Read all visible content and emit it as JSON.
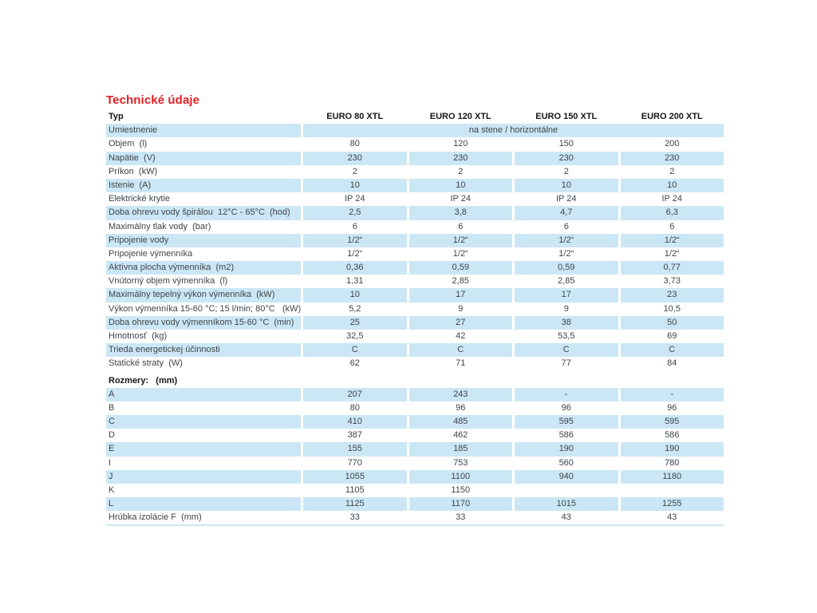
{
  "title": "Technické údaje",
  "colors": {
    "accent_red": "#e31e24",
    "row_blue": "#cbe7f5",
    "text": "#3f4449"
  },
  "table": {
    "header": {
      "label": "Typ",
      "columns": [
        "EURO 80 XTL",
        "EURO 120 XTL",
        "EURO 150 XTL",
        "EURO 200 XTL"
      ]
    },
    "rows": [
      {
        "label": "Umiestnenie",
        "merged": "na stene / horizontálne"
      },
      {
        "label": "Objem  (l)",
        "values": [
          "80",
          "120",
          "150",
          "200"
        ]
      },
      {
        "label": "Napätie  (V)",
        "values": [
          "230",
          "230",
          "230",
          "230"
        ]
      },
      {
        "label": "Príkon  (kW)",
        "values": [
          "2",
          "2",
          "2",
          "2"
        ]
      },
      {
        "label": "Istenie  (A)",
        "values": [
          "10",
          "10",
          "10",
          "10"
        ]
      },
      {
        "label": "Elektrické krytie",
        "values": [
          "IP 24",
          "IP 24",
          "IP 24",
          "IP 24"
        ]
      },
      {
        "label": "Doba ohrevu vody špirálou  12°C - 65°C  (hod)",
        "values": [
          "2,5",
          "3,8",
          "4,7",
          "6,3"
        ]
      },
      {
        "label": "Maximálny tlak vody  (bar)",
        "values": [
          "6",
          "6",
          "6",
          "6"
        ]
      },
      {
        "label": "Pripojenie vody",
        "values": [
          "1/2“",
          "1/2“",
          "1/2“",
          "1/2“"
        ]
      },
      {
        "label": "Pripojenie výmenníka",
        "values": [
          "1/2“",
          "1/2“",
          "1/2“",
          "1/2“"
        ]
      },
      {
        "label": "Aktívna plocha výmenníka  (m2)",
        "values": [
          "0,36",
          "0,59",
          "0,59",
          "0,77"
        ]
      },
      {
        "label": "Vnútorný objem výmenníka  (l)",
        "values": [
          "1,31",
          "2,85",
          "2,85",
          "3,73"
        ]
      },
      {
        "label": "Maximálny tepelný výkon výmenníka  (kW)",
        "values": [
          "10",
          "17",
          "17",
          "23"
        ]
      },
      {
        "label": "Výkon výmenníka 15-60 °C; 15 l/min; 80°C   (kW)",
        "values": [
          "5,2",
          "9",
          "9",
          "10,5"
        ]
      },
      {
        "label": "Doba ohrevu vody výmenníkom 15-60 °C  (min)",
        "values": [
          "25",
          "27",
          "38",
          "50"
        ]
      },
      {
        "label": "Hmotnosť  (kg)",
        "values": [
          "32,5",
          "42",
          "53,5",
          "69"
        ]
      },
      {
        "label": "Trieda energetickej účinnosti",
        "values": [
          "C",
          "C",
          "C",
          "C"
        ]
      },
      {
        "label": "Statické straty  (W)",
        "values": [
          "62",
          "71",
          "77",
          "84"
        ]
      },
      {
        "section": "Rozmery:   (mm)"
      },
      {
        "label": "A",
        "values": [
          "207",
          "243",
          "-",
          "-"
        ]
      },
      {
        "label": "B",
        "values": [
          "80",
          "96",
          "96",
          "96"
        ]
      },
      {
        "label": "C",
        "values": [
          "410",
          "485",
          "595",
          "595"
        ]
      },
      {
        "label": "D",
        "values": [
          "387",
          "462",
          "586",
          "586"
        ]
      },
      {
        "label": "E",
        "values": [
          "155",
          "185",
          "190",
          "190"
        ]
      },
      {
        "label": "I",
        "values": [
          "770",
          "753",
          "560",
          "780"
        ]
      },
      {
        "label": "J",
        "values": [
          "1055",
          "1100",
          "940",
          "1180"
        ]
      },
      {
        "label": "K",
        "values": [
          "1105",
          "1150",
          "",
          ""
        ]
      },
      {
        "label": "L",
        "values": [
          "1125",
          "1170",
          "1015",
          "1255"
        ]
      },
      {
        "label": "Hrúbka izolácie F  (mm)",
        "values": [
          "33",
          "33",
          "43",
          "43"
        ]
      }
    ]
  }
}
